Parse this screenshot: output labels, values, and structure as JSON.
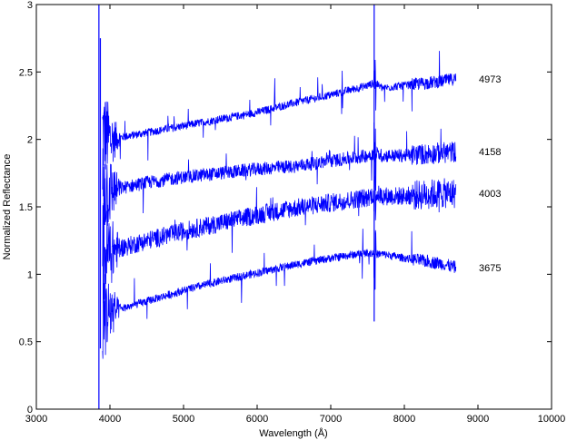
{
  "chart_data": {
    "type": "line",
    "title": "",
    "xlabel": "Wavelength (Å)",
    "ylabel": "Normalized Reflectance",
    "xlim": [
      3000,
      10000
    ],
    "ylim": [
      0,
      3
    ],
    "xticks": [
      3000,
      4000,
      5000,
      6000,
      7000,
      8000,
      9000,
      10000
    ],
    "yticks": [
      0,
      0.5,
      1,
      1.5,
      2,
      2.5,
      3
    ],
    "ytick_labels": [
      "0",
      "0.5",
      "1",
      "1.5",
      "2",
      "2.5",
      "3"
    ],
    "grid": false,
    "line_color": "#0000ff",
    "series": [
      {
        "name": "4973",
        "x": [
          3900,
          4000,
          4500,
          5000,
          5500,
          6000,
          6500,
          7000,
          7500,
          7600,
          7700,
          8000,
          8500,
          8700
        ],
        "values": [
          2.05,
          2.0,
          2.05,
          2.1,
          2.15,
          2.2,
          2.27,
          2.33,
          2.4,
          2.42,
          2.38,
          2.4,
          2.43,
          2.45
        ],
        "noise": 0.03
      },
      {
        "name": "4158",
        "x": [
          3900,
          4000,
          4500,
          5000,
          5500,
          6000,
          6500,
          7000,
          7500,
          7600,
          7700,
          8000,
          8500,
          8700
        ],
        "values": [
          1.65,
          1.62,
          1.68,
          1.72,
          1.75,
          1.78,
          1.8,
          1.84,
          1.88,
          1.9,
          1.88,
          1.88,
          1.9,
          1.91
        ],
        "noise": 0.05
      },
      {
        "name": "4003",
        "x": [
          3900,
          4000,
          4500,
          5000,
          5500,
          6000,
          6500,
          7000,
          7500,
          7600,
          7700,
          8000,
          8500,
          8700
        ],
        "values": [
          1.15,
          1.17,
          1.25,
          1.32,
          1.38,
          1.44,
          1.49,
          1.53,
          1.57,
          1.6,
          1.58,
          1.58,
          1.6,
          1.6
        ],
        "noise": 0.07
      },
      {
        "name": "3675",
        "x": [
          3900,
          4000,
          4500,
          5000,
          5500,
          6000,
          6500,
          7000,
          7500,
          7600,
          7700,
          8000,
          8500,
          8700
        ],
        "values": [
          0.7,
          0.72,
          0.8,
          0.88,
          0.95,
          1.01,
          1.07,
          1.12,
          1.16,
          1.15,
          1.15,
          1.12,
          1.08,
          1.05
        ],
        "noise": 0.03
      }
    ]
  }
}
